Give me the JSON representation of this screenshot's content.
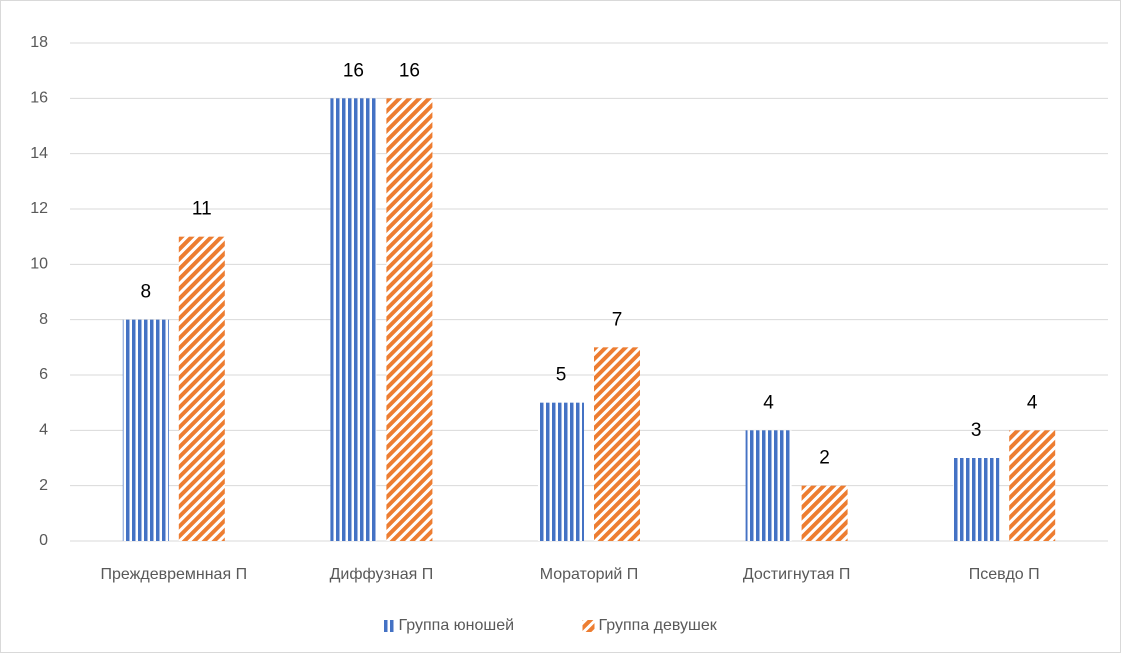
{
  "chart_data": {
    "type": "bar",
    "categories": [
      "Преждевремнная П",
      "Диффузная П",
      "Мораторий П",
      "Достигнутая П",
      "Псевдо П"
    ],
    "series": [
      {
        "name": "Группа юношей",
        "color": "#4472c4",
        "pattern": "vertical",
        "values": [
          8,
          16,
          5,
          4,
          3
        ]
      },
      {
        "name": "Группа девушек",
        "color": "#ed7d31",
        "pattern": "diagonal",
        "values": [
          11,
          16,
          7,
          2,
          4
        ]
      }
    ],
    "ylim": [
      0,
      18
    ],
    "yticks": [
      0,
      2,
      4,
      6,
      8,
      10,
      12,
      14,
      16,
      18
    ],
    "grid": true,
    "legend": "bottom"
  }
}
